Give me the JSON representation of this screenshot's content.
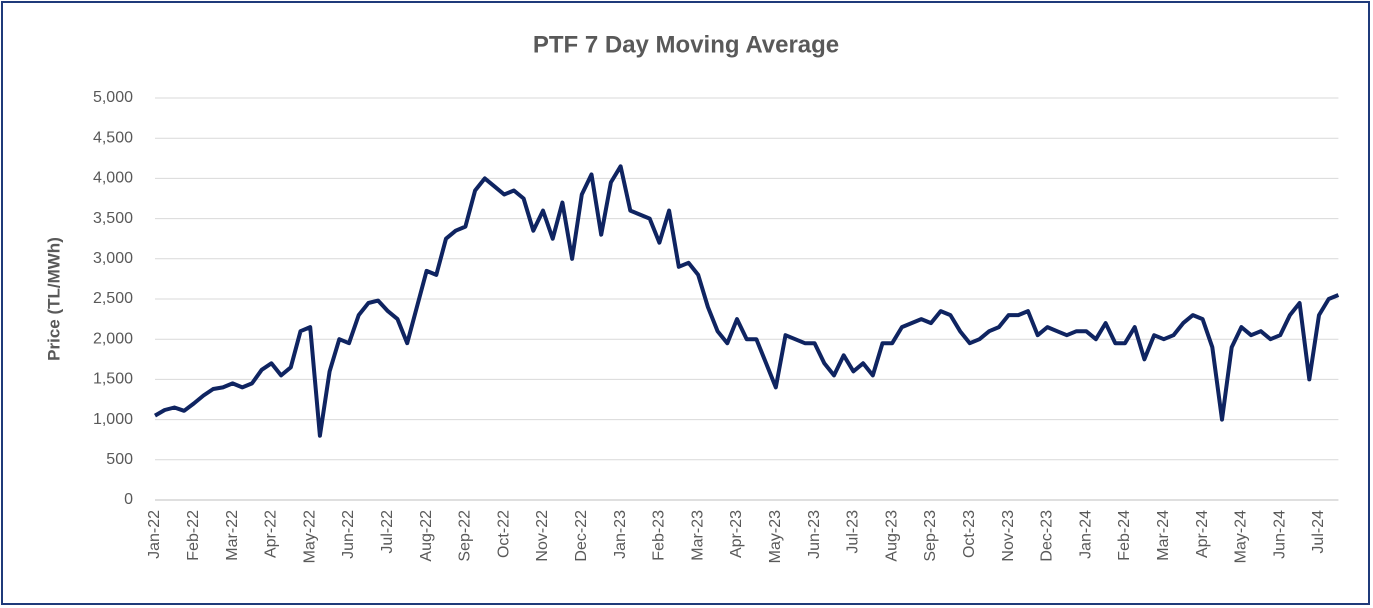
{
  "chart_data": {
    "type": "line",
    "title": "PTF 7 Day Moving Average",
    "y_label": "Price (TL/MWh)",
    "categories": [
      "Jan-22",
      null,
      null,
      null,
      "Feb-22",
      null,
      null,
      null,
      "Mar-22",
      null,
      null,
      null,
      "Apr-22",
      null,
      null,
      null,
      "May-22",
      null,
      null,
      null,
      "Jun-22",
      null,
      null,
      null,
      "Jul-22",
      null,
      null,
      null,
      "Aug-22",
      null,
      null,
      null,
      "Sep-22",
      null,
      null,
      null,
      "Oct-22",
      null,
      null,
      null,
      "Nov-22",
      null,
      null,
      null,
      "Dec-22",
      null,
      null,
      null,
      "Jan-23",
      null,
      null,
      null,
      "Feb-23",
      null,
      null,
      null,
      "Mar-23",
      null,
      null,
      null,
      "Apr-23",
      null,
      null,
      null,
      "May-23",
      null,
      null,
      null,
      "Jun-23",
      null,
      null,
      null,
      "Jul-23",
      null,
      null,
      null,
      "Aug-23",
      null,
      null,
      null,
      "Sep-23",
      null,
      null,
      null,
      "Oct-23",
      null,
      null,
      null,
      "Nov-23",
      null,
      null,
      null,
      "Dec-23",
      null,
      null,
      null,
      "Jan-24",
      null,
      null,
      null,
      "Feb-24",
      null,
      null,
      null,
      "Mar-24",
      null,
      null,
      null,
      "Apr-24",
      null,
      null,
      null,
      "May-24",
      null,
      null,
      null,
      "Jun-24",
      null,
      null,
      null,
      "Jul-24",
      null,
      null
    ],
    "series": [
      {
        "name": "PTF 7 Day Moving Average",
        "color": "#0f2461",
        "values": [
          1050,
          1120,
          1150,
          1110,
          1200,
          1300,
          1380,
          1400,
          1450,
          1400,
          1450,
          1620,
          1700,
          1550,
          1650,
          2100,
          2150,
          800,
          1600,
          2000,
          1950,
          2300,
          2450,
          2480,
          2350,
          2250,
          1950,
          2400,
          2850,
          2800,
          3250,
          3350,
          3400,
          3850,
          4000,
          3900,
          3800,
          3850,
          3750,
          3350,
          3600,
          3250,
          3700,
          3000,
          3800,
          4050,
          3300,
          3950,
          4150,
          3600,
          3550,
          3500,
          3200,
          3600,
          2900,
          2950,
          2800,
          2400,
          2100,
          1950,
          2250,
          2000,
          2000,
          1700,
          1400,
          2050,
          2000,
          1950,
          1950,
          1700,
          1550,
          1800,
          1600,
          1700,
          1550,
          1950,
          1950,
          2150,
          2200,
          2250,
          2200,
          2350,
          2300,
          2100,
          1950,
          2000,
          2100,
          2150,
          2300,
          2300,
          2350,
          2050,
          2150,
          2100,
          2050,
          2100,
          2100,
          2000,
          2200,
          1950,
          1950,
          2150,
          1750,
          2050,
          2000,
          2050,
          2200,
          2300,
          2250,
          1900,
          1000,
          1900,
          2150,
          2050,
          2100,
          2000,
          2050,
          2300,
          2450,
          1500,
          2300,
          2500,
          2550
        ]
      }
    ],
    "ylim": [
      0,
      5000
    ],
    "yticks": [
      0,
      500,
      {
        "value": 1000,
        "label": "1,000"
      },
      {
        "value": 1500,
        "label": "1,500"
      },
      {
        "value": 2000,
        "label": "2,000"
      },
      {
        "value": 2500,
        "label": "2,500"
      },
      {
        "value": 3000,
        "label": "3,000"
      },
      {
        "value": 3500,
        "label": "3,500"
      },
      {
        "value": 4000,
        "label": "4,000"
      },
      {
        "value": 4500,
        "label": "4,500"
      },
      {
        "value": 5000,
        "label": "5,000"
      }
    ],
    "grid": true
  }
}
